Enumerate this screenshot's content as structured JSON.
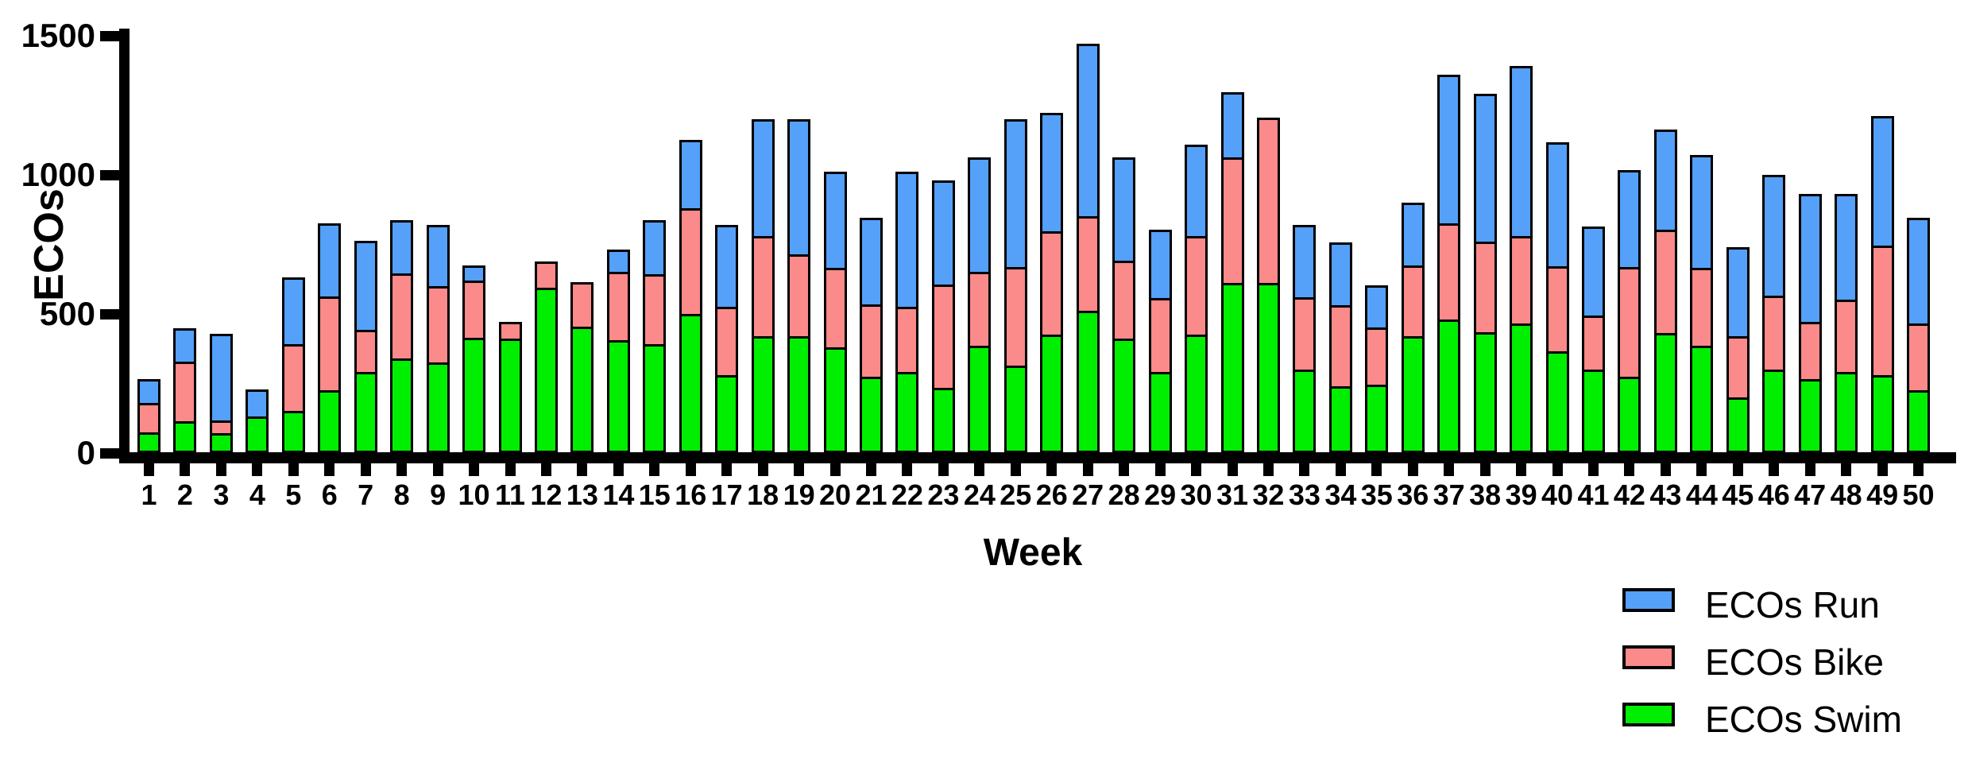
{
  "chart_data": {
    "type": "bar",
    "stacked": true,
    "xlabel": "Week",
    "ylabel": "ECOs",
    "ylim": [
      0,
      1500
    ],
    "yticks": [
      0,
      500,
      1000,
      1500
    ],
    "grid": false,
    "legend_position": "bottom-right",
    "categories": [
      1,
      2,
      3,
      4,
      5,
      6,
      7,
      8,
      9,
      10,
      11,
      12,
      13,
      14,
      15,
      16,
      17,
      18,
      19,
      20,
      21,
      22,
      23,
      24,
      25,
      26,
      27,
      28,
      29,
      30,
      31,
      32,
      33,
      34,
      35,
      36,
      37,
      38,
      39,
      40,
      41,
      42,
      43,
      44,
      45,
      46,
      47,
      48,
      49,
      50
    ],
    "series": [
      {
        "name": "ECOs Swim",
        "color": "#00EF00",
        "values": [
          75,
          115,
          70,
          130,
          150,
          226,
          290,
          340,
          325,
          415,
          410,
          595,
          455,
          405,
          390,
          500,
          280,
          420,
          420,
          380,
          275,
          290,
          235,
          385,
          315,
          425,
          510,
          410,
          290,
          425,
          610,
          610,
          300,
          240,
          245,
          420,
          480,
          435,
          465,
          365,
          300,
          275,
          430,
          385,
          200,
          300,
          265,
          290,
          280,
          225
        ]
      },
      {
        "name": "ECOs Bike",
        "color": "#FB8A8A",
        "values": [
          105,
          215,
          45,
          0,
          240,
          336,
          150,
          305,
          275,
          205,
          60,
          95,
          160,
          245,
          250,
          380,
          245,
          360,
          295,
          285,
          260,
          235,
          370,
          265,
          355,
          370,
          340,
          280,
          265,
          355,
          450,
          595,
          260,
          290,
          205,
          255,
          345,
          325,
          315,
          305,
          195,
          395,
          370,
          280,
          220,
          265,
          205,
          260,
          465,
          240
        ]
      },
      {
        "name": "ECOs Run",
        "color": "#55A0F8",
        "values": [
          85,
          120,
          312,
          98,
          240,
          264,
          320,
          190,
          220,
          55,
          0,
          0,
          0,
          80,
          195,
          245,
          295,
          420,
          485,
          345,
          310,
          485,
          375,
          410,
          530,
          425,
          620,
          370,
          245,
          330,
          235,
          0,
          260,
          225,
          150,
          225,
          535,
          530,
          610,
          445,
          320,
          350,
          360,
          405,
          320,
          435,
          460,
          380,
          465,
          380
        ]
      }
    ],
    "legend_entries": [
      "ECOs Run",
      "ECOs Bike",
      "ECOs Swim"
    ],
    "axis_color": "#000000",
    "background_color": "#ffffff"
  }
}
